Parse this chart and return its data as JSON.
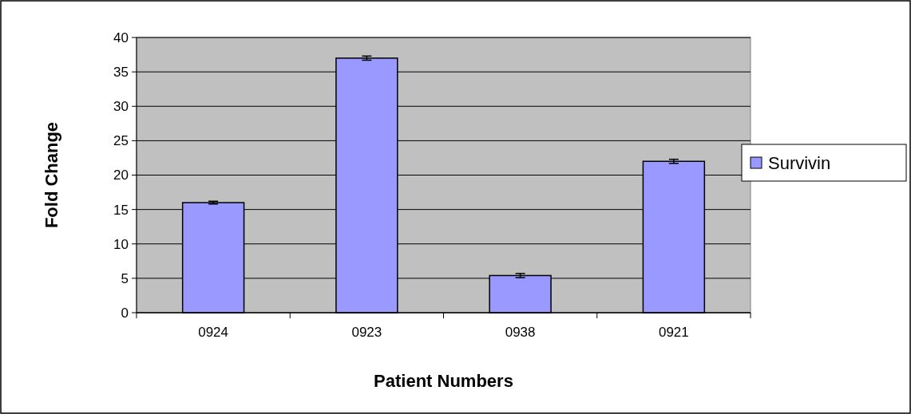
{
  "chart_data": {
    "type": "bar",
    "xlabel": "Patient Numbers",
    "ylabel": "Fold Change",
    "categories": [
      "0924",
      "0923",
      "0938",
      "0921"
    ],
    "series": [
      {
        "name": "Survivin",
        "color": "#9999ff",
        "values": [
          16,
          37,
          5.4,
          22
        ],
        "errors": [
          0.2,
          0.3,
          0.3,
          0.3
        ]
      }
    ],
    "ylim": [
      0,
      40
    ],
    "yticks": [
      0,
      5,
      10,
      15,
      20,
      25,
      30,
      35,
      40
    ],
    "grid": "y",
    "legend": "right"
  }
}
